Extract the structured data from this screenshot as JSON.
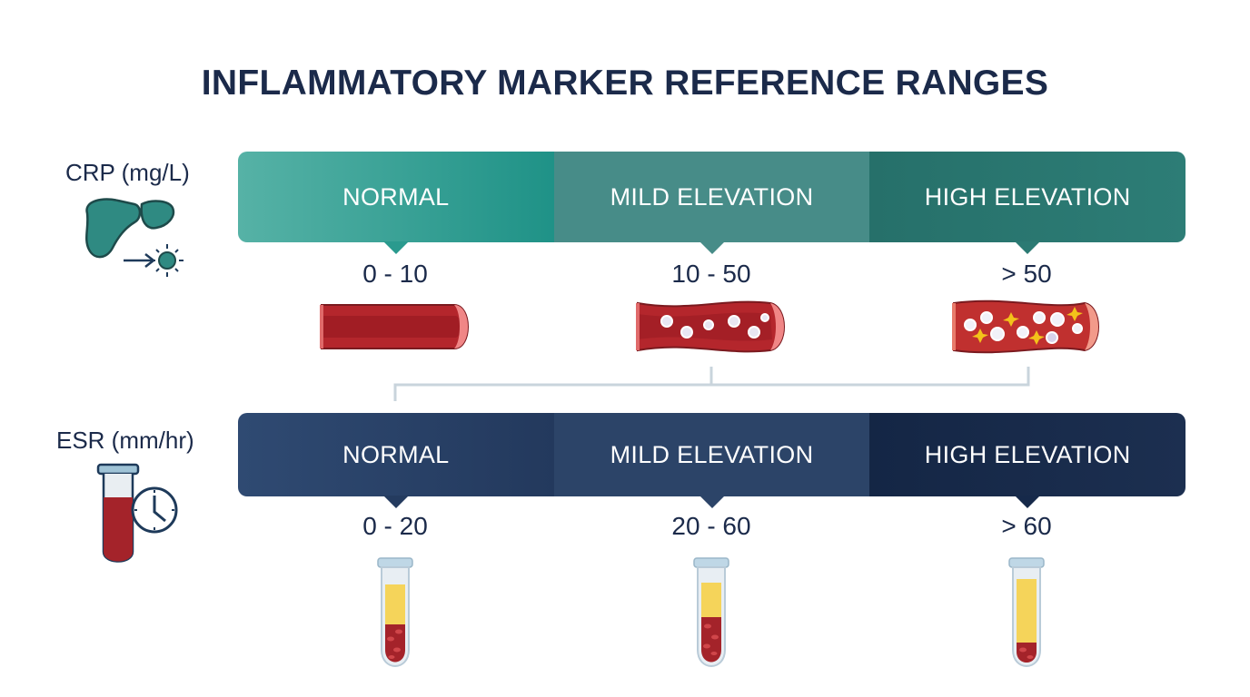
{
  "title": "INFLAMMATORY MARKER REFERENCE RANGES",
  "markers": [
    {
      "label": "CRP (mg/L)",
      "icon": "liver-icon",
      "categories": [
        {
          "label": "NORMAL",
          "range": "0 - 10",
          "color": "#2c9c90",
          "illustration": "clear-blood-vessel"
        },
        {
          "label": "MILD ELEVATION",
          "range": "10 - 50",
          "color": "#3f8a86",
          "illustration": "vessel-with-white-cells"
        },
        {
          "label": "HIGH ELEVATION",
          "range": "> 50",
          "color": "#236e68",
          "illustration": "inflamed-vessel"
        }
      ]
    },
    {
      "label": "ESR (mm/hr)",
      "icon": "blood-tube-clock-icon",
      "categories": [
        {
          "label": "NORMAL",
          "range": "0 - 20",
          "color": "#243b5f",
          "illustration": "tube-low-sediment"
        },
        {
          "label": "MILD ELEVATION",
          "range": "20 - 60",
          "color": "#2c4468",
          "illustration": "tube-medium-sediment"
        },
        {
          "label": "HIGH ELEVATION",
          "range": "> 60",
          "color": "#152848",
          "illustration": "tube-high-sediment"
        }
      ]
    }
  ]
}
